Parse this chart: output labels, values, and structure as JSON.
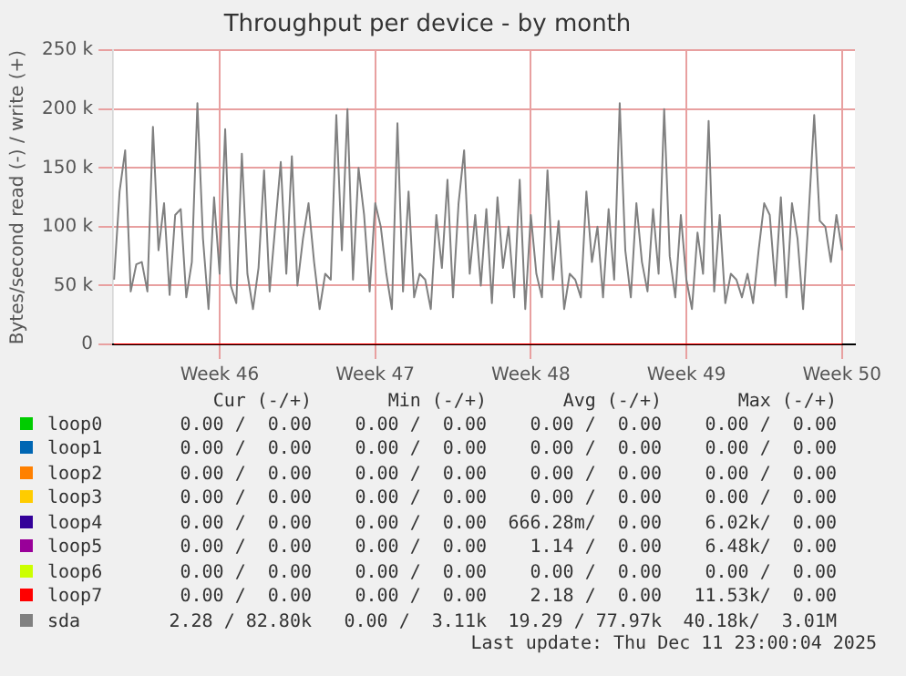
{
  "chart_data": {
    "type": "line",
    "title": "Throughput per device - by month",
    "ylabel": "Bytes/second read (-) / write (+)",
    "xlim": [
      "2025-11-05T05:00",
      "2025-12-08T14:00"
    ],
    "xticks": [
      {
        "value": "2025-11-10",
        "label": "Week 46"
      },
      {
        "value": "2025-11-17",
        "label": "Week 47"
      },
      {
        "value": "2025-11-24",
        "label": "Week 48"
      },
      {
        "value": "2025-12-01",
        "label": "Week 49"
      },
      {
        "value": "2025-12-08",
        "label": "Week 50"
      }
    ],
    "ylim": [
      0,
      250000
    ],
    "yticks": [
      {
        "value": 0,
        "label": "0"
      },
      {
        "value": 50000,
        "label": "50 k"
      },
      {
        "value": 100000,
        "label": "100 k"
      },
      {
        "value": 150000,
        "label": "150 k"
      },
      {
        "value": 200000,
        "label": "200 k"
      },
      {
        "value": 250000,
        "label": "250 k"
      }
    ],
    "grid": true,
    "legend": "bottom",
    "marker": "none",
    "line_style": "solid",
    "x": [
      "2025-11-05T06:00",
      "2025-11-05T12:00",
      "2025-11-05T18:00",
      "2025-11-06T00:00",
      "2025-11-06T06:00",
      "2025-11-06T12:00",
      "2025-11-06T18:00",
      "2025-11-07T00:00",
      "2025-11-07T06:00",
      "2025-11-07T12:00",
      "2025-11-07T18:00",
      "2025-11-08T00:00",
      "2025-11-08T06:00",
      "2025-11-08T12:00",
      "2025-11-08T18:00",
      "2025-11-09T00:00",
      "2025-11-09T06:00",
      "2025-11-09T12:00",
      "2025-11-09T18:00",
      "2025-11-10T00:00",
      "2025-11-10T06:00",
      "2025-11-10T12:00",
      "2025-11-10T18:00",
      "2025-11-11T00:00",
      "2025-11-11T06:00",
      "2025-11-11T12:00",
      "2025-11-11T18:00",
      "2025-11-12T00:00",
      "2025-11-12T06:00",
      "2025-11-12T12:00",
      "2025-11-12T18:00",
      "2025-11-13T00:00",
      "2025-11-13T06:00",
      "2025-11-13T12:00",
      "2025-11-13T18:00",
      "2025-11-14T00:00",
      "2025-11-14T06:00",
      "2025-11-14T12:00",
      "2025-11-14T18:00",
      "2025-11-15T00:00",
      "2025-11-15T06:00",
      "2025-11-15T12:00",
      "2025-11-15T18:00",
      "2025-11-16T00:00",
      "2025-11-16T06:00",
      "2025-11-16T12:00",
      "2025-11-16T18:00",
      "2025-11-17T00:00",
      "2025-11-17T06:00",
      "2025-11-17T12:00",
      "2025-11-17T18:00",
      "2025-11-18T00:00",
      "2025-11-18T06:00",
      "2025-11-18T12:00",
      "2025-11-18T18:00",
      "2025-11-19T00:00",
      "2025-11-19T06:00",
      "2025-11-19T12:00",
      "2025-11-19T18:00",
      "2025-11-20T00:00",
      "2025-11-20T06:00",
      "2025-11-20T12:00",
      "2025-11-20T18:00",
      "2025-11-21T00:00",
      "2025-11-21T06:00",
      "2025-11-21T12:00",
      "2025-11-21T18:00",
      "2025-11-22T00:00",
      "2025-11-22T06:00",
      "2025-11-22T12:00",
      "2025-11-22T18:00",
      "2025-11-23T00:00",
      "2025-11-23T06:00",
      "2025-11-23T12:00",
      "2025-11-23T18:00",
      "2025-11-24T00:00",
      "2025-11-24T06:00",
      "2025-11-24T12:00",
      "2025-11-24T18:00",
      "2025-11-25T00:00",
      "2025-11-25T06:00",
      "2025-11-25T12:00",
      "2025-11-25T18:00",
      "2025-11-26T00:00",
      "2025-11-26T06:00",
      "2025-11-26T12:00",
      "2025-11-26T18:00",
      "2025-11-27T00:00",
      "2025-11-27T06:00",
      "2025-11-27T12:00",
      "2025-11-27T18:00",
      "2025-11-28T00:00",
      "2025-11-28T06:00",
      "2025-11-28T12:00",
      "2025-11-28T18:00",
      "2025-11-29T00:00",
      "2025-11-29T06:00",
      "2025-11-29T12:00",
      "2025-11-29T18:00",
      "2025-11-30T00:00",
      "2025-11-30T06:00",
      "2025-11-30T12:00",
      "2025-11-30T18:00",
      "2025-12-01T00:00",
      "2025-12-01T06:00",
      "2025-12-01T12:00",
      "2025-12-01T18:00",
      "2025-12-02T00:00",
      "2025-12-02T06:00",
      "2025-12-02T12:00",
      "2025-12-02T18:00",
      "2025-12-03T00:00",
      "2025-12-03T06:00",
      "2025-12-03T12:00",
      "2025-12-03T18:00",
      "2025-12-04T00:00",
      "2025-12-04T06:00",
      "2025-12-04T12:00",
      "2025-12-04T18:00",
      "2025-12-05T00:00",
      "2025-12-05T06:00",
      "2025-12-05T12:00",
      "2025-12-05T18:00",
      "2025-12-06T00:00",
      "2025-12-06T06:00",
      "2025-12-06T12:00",
      "2025-12-06T18:00",
      "2025-12-07T00:00",
      "2025-12-07T06:00",
      "2025-12-07T12:00",
      "2025-12-07T18:00",
      "2025-12-08T00:00"
    ],
    "series": [
      {
        "name": "loop0",
        "color": "#00cc00",
        "values": [
          null,
          null,
          null,
          null,
          null,
          null,
          null,
          null,
          null,
          null,
          null,
          null,
          null,
          null,
          null,
          null,
          null,
          null,
          null,
          null,
          null,
          null,
          null,
          null,
          null,
          null,
          null,
          null,
          null,
          null,
          null,
          null,
          null,
          null,
          null,
          null,
          null,
          null,
          null,
          null,
          null,
          null,
          null,
          null,
          null,
          null,
          null,
          null,
          null,
          null,
          null,
          null,
          null,
          null,
          null,
          null,
          null,
          null,
          null,
          null,
          null,
          null,
          null,
          null,
          null,
          null,
          null,
          null,
          null,
          null,
          null,
          null,
          null,
          null,
          null,
          null,
          null,
          null,
          null,
          null,
          null,
          null,
          null,
          null,
          null,
          null,
          null,
          null,
          null,
          null,
          null,
          null,
          null,
          null,
          null,
          null,
          null,
          null,
          null,
          null,
          null,
          null,
          null,
          null,
          null,
          null,
          null,
          null,
          null,
          null,
          null,
          null,
          null,
          null,
          null,
          null,
          null,
          null,
          null,
          null,
          null,
          null,
          null,
          null,
          null,
          null,
          null,
          null,
          null,
          null,
          null,
          null
        ]
      },
      {
        "name": "loop1",
        "color": "#0066b3",
        "values": [
          null,
          null,
          null,
          null,
          null,
          null,
          null,
          null,
          null,
          null,
          null,
          null,
          null,
          null,
          null,
          null,
          null,
          null,
          null,
          null,
          null,
          null,
          null,
          null,
          null,
          null,
          null,
          null,
          null,
          null,
          null,
          null,
          null,
          null,
          null,
          null,
          null,
          null,
          null,
          null,
          null,
          null,
          null,
          null,
          null,
          null,
          null,
          null,
          null,
          null,
          null,
          null,
          null,
          null,
          null,
          null,
          null,
          null,
          null,
          null,
          null,
          null,
          null,
          null,
          null,
          null,
          null,
          null,
          null,
          null,
          null,
          null,
          null,
          null,
          null,
          null,
          null,
          null,
          null,
          null,
          null,
          null,
          null,
          null,
          null,
          null,
          null,
          null,
          null,
          null,
          null,
          null,
          null,
          null,
          null,
          null,
          null,
          null,
          null,
          null,
          null,
          null,
          null,
          null,
          null,
          null,
          null,
          null,
          null,
          null,
          null,
          null,
          null,
          null,
          null,
          null,
          null,
          null,
          null,
          null,
          null,
          null,
          null,
          null,
          null,
          null,
          null,
          null,
          null,
          null,
          null,
          null
        ]
      },
      {
        "name": "loop2",
        "color": "#ff8000",
        "values": [
          null,
          null,
          null,
          null,
          null,
          null,
          null,
          null,
          null,
          null,
          null,
          null,
          null,
          null,
          null,
          null,
          null,
          null,
          null,
          null,
          null,
          null,
          null,
          null,
          null,
          null,
          null,
          null,
          null,
          null,
          null,
          null,
          null,
          null,
          null,
          null,
          null,
          null,
          null,
          null,
          null,
          null,
          null,
          null,
          null,
          null,
          null,
          null,
          null,
          null,
          null,
          null,
          null,
          null,
          null,
          null,
          null,
          null,
          null,
          null,
          null,
          null,
          null,
          null,
          null,
          null,
          null,
          null,
          null,
          null,
          null,
          null,
          null,
          null,
          null,
          null,
          null,
          null,
          null,
          null,
          null,
          null,
          null,
          null,
          null,
          null,
          null,
          null,
          null,
          null,
          null,
          null,
          null,
          null,
          null,
          null,
          null,
          null,
          null,
          null,
          null,
          null,
          null,
          null,
          null,
          null,
          null,
          null,
          null,
          null,
          null,
          null,
          null,
          null,
          null,
          null,
          null,
          null,
          null,
          null,
          null,
          null,
          null,
          null,
          null,
          null,
          null,
          null,
          null,
          null,
          null,
          null
        ]
      },
      {
        "name": "loop3",
        "color": "#ffcc00",
        "values": [
          null,
          null,
          null,
          null,
          null,
          null,
          null,
          null,
          null,
          null,
          null,
          null,
          null,
          null,
          null,
          null,
          null,
          null,
          null,
          null,
          null,
          null,
          null,
          null,
          null,
          null,
          null,
          null,
          null,
          null,
          null,
          null,
          null,
          null,
          null,
          null,
          null,
          null,
          null,
          null,
          null,
          null,
          null,
          null,
          null,
          null,
          null,
          null,
          null,
          null,
          null,
          null,
          null,
          null,
          null,
          null,
          null,
          null,
          null,
          null,
          null,
          null,
          null,
          null,
          null,
          null,
          null,
          null,
          null,
          null,
          null,
          null,
          null,
          null,
          null,
          null,
          null,
          null,
          null,
          null,
          null,
          null,
          null,
          null,
          null,
          null,
          null,
          null,
          null,
          null,
          null,
          null,
          null,
          null,
          null,
          null,
          null,
          null,
          null,
          null,
          null,
          null,
          null,
          null,
          null,
          null,
          null,
          null,
          null,
          null,
          null,
          null,
          null,
          null,
          null,
          null,
          null,
          null,
          null,
          null,
          null,
          null,
          null,
          null,
          null,
          null,
          null,
          null,
          null,
          null,
          null,
          null
        ]
      },
      {
        "name": "loop4",
        "color": "#330099",
        "values": [
          null,
          null,
          null,
          null,
          null,
          null,
          null,
          null,
          null,
          null,
          null,
          null,
          null,
          null,
          null,
          null,
          null,
          null,
          null,
          null,
          null,
          null,
          null,
          null,
          null,
          null,
          null,
          null,
          null,
          null,
          null,
          null,
          null,
          null,
          null,
          null,
          null,
          null,
          null,
          null,
          null,
          null,
          null,
          null,
          null,
          null,
          null,
          null,
          null,
          null,
          null,
          null,
          null,
          null,
          null,
          null,
          null,
          null,
          null,
          null,
          null,
          null,
          null,
          null,
          null,
          null,
          null,
          null,
          null,
          null,
          null,
          null,
          null,
          null,
          null,
          null,
          null,
          null,
          null,
          null,
          null,
          null,
          null,
          null,
          null,
          null,
          null,
          null,
          null,
          null,
          null,
          null,
          null,
          null,
          null,
          null,
          null,
          null,
          null,
          null,
          null,
          null,
          null,
          null,
          null,
          null,
          null,
          null,
          null,
          null,
          null,
          null,
          null,
          null,
          null,
          null,
          null,
          null,
          null,
          null,
          null,
          null,
          null,
          null,
          null,
          null,
          null,
          null,
          null,
          null,
          null,
          null
        ]
      },
      {
        "name": "loop5",
        "color": "#990099",
        "values": [
          null,
          null,
          null,
          null,
          null,
          null,
          null,
          null,
          null,
          null,
          null,
          null,
          null,
          null,
          null,
          null,
          null,
          null,
          null,
          null,
          null,
          null,
          null,
          null,
          null,
          null,
          null,
          null,
          null,
          null,
          null,
          null,
          null,
          null,
          null,
          null,
          null,
          null,
          null,
          null,
          null,
          null,
          null,
          null,
          null,
          null,
          null,
          null,
          null,
          null,
          null,
          null,
          null,
          null,
          null,
          null,
          null,
          null,
          null,
          null,
          null,
          null,
          null,
          null,
          null,
          null,
          null,
          null,
          null,
          null,
          null,
          null,
          null,
          null,
          null,
          null,
          null,
          null,
          null,
          null,
          null,
          null,
          null,
          null,
          null,
          null,
          null,
          null,
          null,
          null,
          null,
          null,
          null,
          null,
          null,
          null,
          null,
          null,
          null,
          null,
          null,
          null,
          null,
          null,
          null,
          null,
          null,
          null,
          null,
          null,
          null,
          null,
          null,
          null,
          null,
          null,
          null,
          null,
          null,
          null,
          null,
          null,
          null,
          null,
          null,
          null,
          null,
          null,
          null,
          null,
          null,
          null
        ]
      },
      {
        "name": "loop6",
        "color": "#ccff00",
        "values": [
          null,
          null,
          null,
          null,
          null,
          null,
          null,
          null,
          null,
          null,
          null,
          null,
          null,
          null,
          null,
          null,
          null,
          null,
          null,
          null,
          null,
          null,
          null,
          null,
          null,
          null,
          null,
          null,
          null,
          null,
          null,
          null,
          null,
          null,
          null,
          null,
          null,
          null,
          null,
          null,
          null,
          null,
          null,
          null,
          null,
          null,
          null,
          null,
          null,
          null,
          null,
          null,
          null,
          null,
          null,
          null,
          null,
          null,
          null,
          null,
          null,
          null,
          null,
          null,
          null,
          null,
          null,
          null,
          null,
          null,
          null,
          null,
          null,
          null,
          null,
          null,
          null,
          null,
          null,
          null,
          null,
          null,
          null,
          null,
          null,
          null,
          null,
          null,
          null,
          null,
          null,
          null,
          null,
          null,
          null,
          null,
          null,
          null,
          null,
          null,
          null,
          null,
          null,
          null,
          null,
          null,
          null,
          null,
          null,
          null,
          null,
          null,
          null,
          null,
          null,
          null,
          null,
          null,
          null,
          null,
          null,
          null,
          null,
          null,
          null,
          null,
          null,
          null,
          null,
          null,
          null,
          null
        ]
      },
      {
        "name": "loop7",
        "color": "#ff0000",
        "values": [
          0,
          0,
          0,
          0,
          0,
          0,
          0,
          0,
          0,
          0,
          0,
          0,
          0,
          0,
          0,
          0,
          0,
          0,
          0,
          0,
          0,
          0,
          0,
          0,
          0,
          0,
          0,
          0,
          0,
          0,
          0,
          0,
          0,
          0,
          0,
          0,
          0,
          0,
          0,
          0,
          0,
          0,
          0,
          0,
          0,
          0,
          0,
          0,
          0,
          0,
          0,
          0,
          0,
          0,
          0,
          0,
          0,
          0,
          0,
          0,
          0,
          0,
          0,
          0,
          0,
          0,
          0,
          0,
          0,
          0,
          0,
          0,
          0,
          0,
          0,
          0,
          0,
          0,
          0,
          0,
          0,
          0,
          0,
          0,
          0,
          0,
          0,
          0,
          0,
          0,
          0,
          0,
          0,
          0,
          0,
          0,
          0,
          0,
          0,
          0,
          0,
          0,
          0,
          0,
          0,
          0,
          0,
          0,
          0,
          0,
          0,
          0,
          0,
          0,
          0,
          0,
          0,
          0,
          0,
          0,
          0,
          0,
          0,
          0,
          0,
          0,
          0,
          0,
          0,
          0,
          0,
          0
        ]
      },
      {
        "name": "sda",
        "color": "#808080",
        "values": [
          55000,
          130000,
          165000,
          45000,
          68000,
          70000,
          45000,
          185000,
          80000,
          120000,
          42000,
          110000,
          115000,
          40000,
          70000,
          205000,
          90000,
          30000,
          125000,
          60000,
          183000,
          50000,
          35000,
          162000,
          60000,
          30000,
          65000,
          148000,
          45000,
          100000,
          155000,
          60000,
          160000,
          50000,
          90000,
          120000,
          70000,
          30000,
          60000,
          55000,
          195000,
          80000,
          200000,
          55000,
          150000,
          110000,
          45000,
          120000,
          100000,
          60000,
          30000,
          188000,
          45000,
          130000,
          40000,
          60000,
          55000,
          30000,
          110000,
          65000,
          140000,
          40000,
          120000,
          165000,
          60000,
          110000,
          50000,
          115000,
          35000,
          125000,
          65000,
          100000,
          40000,
          140000,
          30000,
          110000,
          60000,
          40000,
          148000,
          55000,
          105000,
          30000,
          60000,
          55000,
          40000,
          130000,
          70000,
          100000,
          40000,
          115000,
          55000,
          205000,
          80000,
          40000,
          120000,
          70000,
          45000,
          115000,
          60000,
          200000,
          75000,
          40000,
          110000,
          55000,
          30000,
          95000,
          60000,
          190000,
          45000,
          110000,
          35000,
          60000,
          55000,
          40000,
          60000,
          35000,
          80000,
          120000,
          110000,
          50000,
          125000,
          40000,
          120000,
          90000,
          30000,
          110000,
          195000,
          105000,
          100000,
          70000,
          110000,
          80000
        ]
      }
    ],
    "annotations": [
      "Cur (-/+)",
      "Min (-/+)",
      "Avg (-/+)",
      "Max (-/+)",
      "0.00 /  0.00",
      "0.00 /  0.00",
      "0.00 /  0.00",
      "0.00 /  0.00",
      "0.00 /  0.00",
      "0.00 /  0.00",
      "0.00 /  0.00",
      "0.00 /  0.00",
      "0.00 /  0.00",
      "0.00 /  0.00",
      "0.00 /  0.00",
      "0.00 /  0.00",
      "0.00 /  0.00",
      "0.00 /  0.00",
      "0.00 /  0.00",
      "0.00 /  0.00",
      "0.00 /  0.00",
      "0.00 /  0.00",
      "666.28m/  0.00",
      "6.02k/  0.00",
      "0.00 /  0.00",
      "0.00 /  0.00",
      "1.14 /  0.00",
      "6.48k/  0.00",
      "0.00 /  0.00",
      "0.00 /  0.00",
      "0.00 /  0.00",
      "0.00 /  0.00",
      "0.00 /  0.00",
      "0.00 /  0.00",
      "2.18 /  0.00",
      "11.53k/  0.00",
      "2.28 / 82.80k",
      "0.00 /  3.11k",
      "19.29 / 77.97k",
      "40.18k/  3.01M",
      "Last update: Thu Dec 11 23:00:04 2025"
    ]
  }
}
